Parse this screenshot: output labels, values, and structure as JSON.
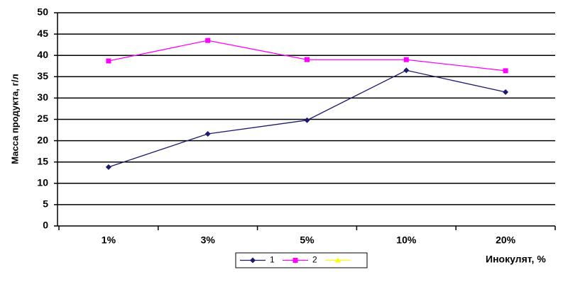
{
  "chart_data": {
    "type": "line",
    "y_label": "Масса продукта, г/л",
    "x_label": "Инокулят, %",
    "categories": [
      "1%",
      "3%",
      "5%",
      "10%",
      "20%"
    ],
    "series": [
      {
        "name": "1",
        "color": "#1a1a6e",
        "marker": "diamond",
        "values": [
          13.8,
          21.6,
          24.8,
          36.5,
          31.4
        ]
      },
      {
        "name": "2",
        "color": "#ff00ff",
        "marker": "square",
        "values": [
          38.7,
          43.5,
          39,
          39,
          36.4
        ]
      },
      {
        "color": "#ffff00",
        "marker": "triangle",
        "values": [
          null,
          null,
          null,
          null,
          null
        ]
      }
    ],
    "ylim": [
      0,
      50
    ],
    "yticks": [
      0,
      5,
      10,
      15,
      20,
      25,
      30,
      35,
      40,
      45,
      50
    ],
    "grid": true
  }
}
